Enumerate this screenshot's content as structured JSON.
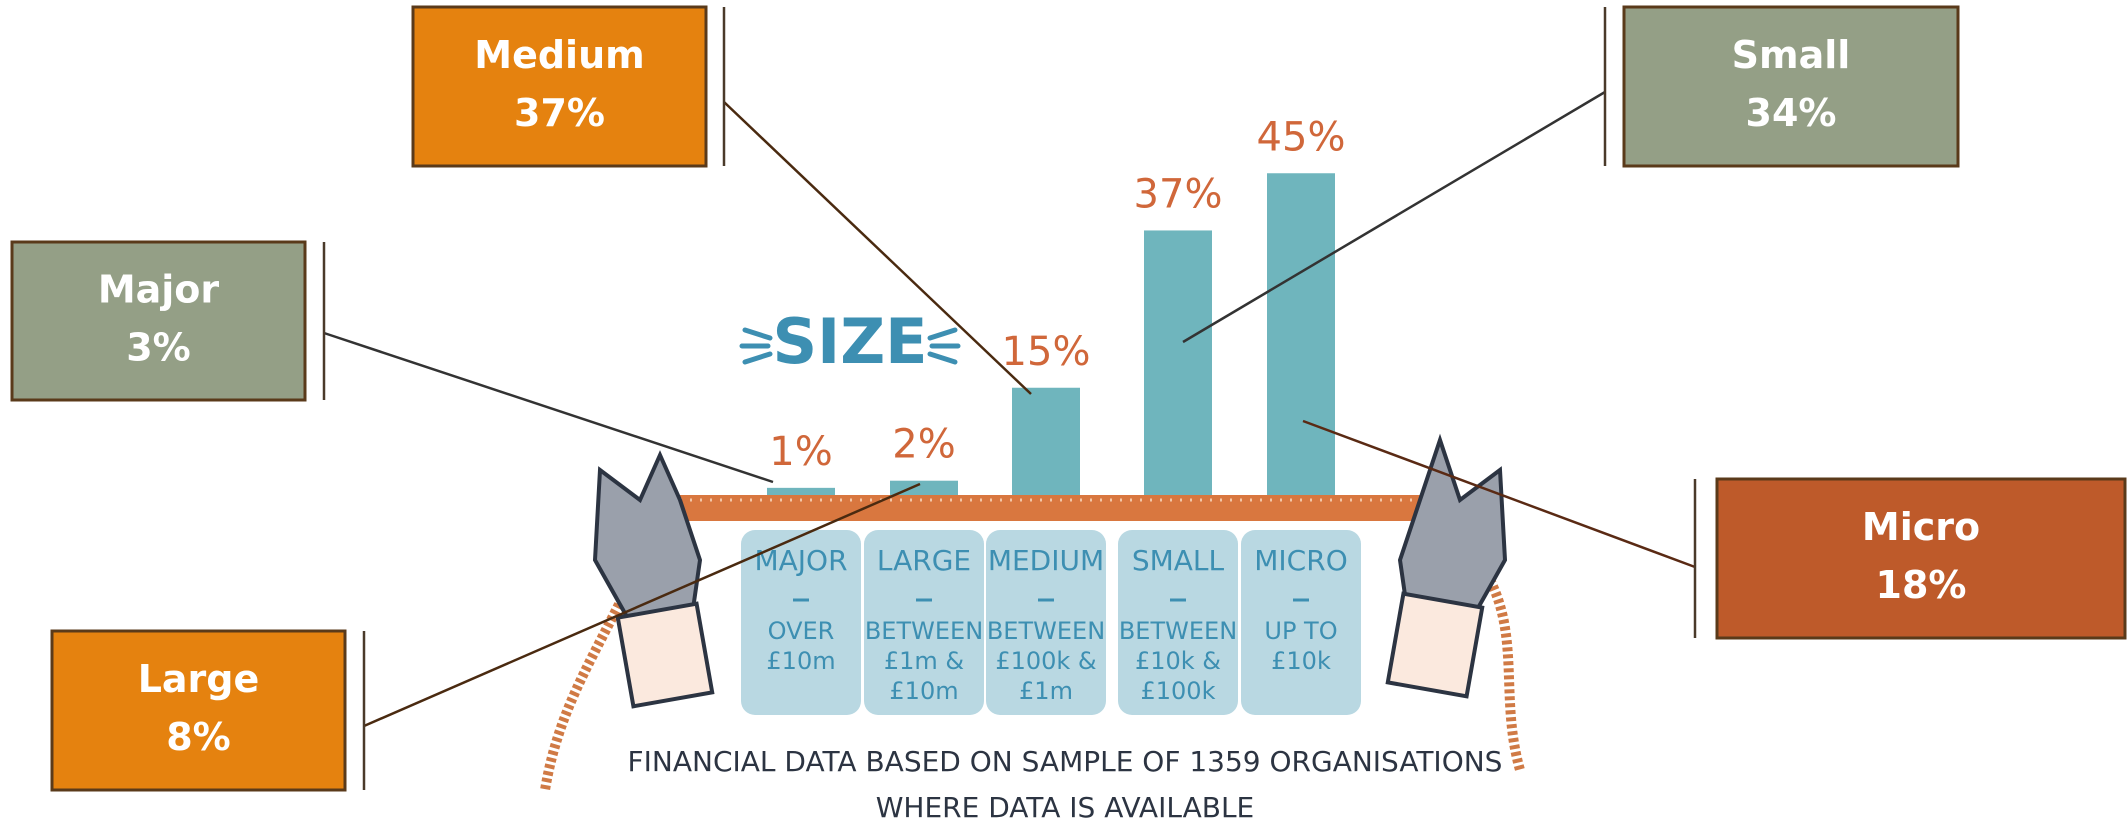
{
  "chart_data": {
    "type": "bar",
    "title": "SIZE",
    "categories": [
      "MAJOR",
      "LARGE",
      "MEDIUM",
      "SMALL",
      "MICRO"
    ],
    "category_details": [
      [
        "OVER",
        "£10m"
      ],
      [
        "BETWEEN",
        "£1m &",
        "£10m"
      ],
      [
        "BETWEEN",
        "£100k &",
        "£1m"
      ],
      [
        "BETWEEN",
        "£10k &",
        "£100k"
      ],
      [
        "UP TO",
        "£10k"
      ]
    ],
    "values": [
      1,
      2,
      15,
      37,
      45
    ],
    "value_labels": [
      "1%",
      "2%",
      "15%",
      "37%",
      "45%"
    ],
    "color": "#6fb5bd",
    "note": [
      "FINANCIAL DATA BASED ON SAMPLE OF 1359 ORGANISATIONS",
      "WHERE DATA IS AVAILABLE"
    ]
  },
  "callouts": [
    {
      "title": "Medium",
      "value": "37%",
      "color": "#e5820f"
    },
    {
      "title": "Small",
      "value": "34%",
      "color": "#949f86"
    },
    {
      "title": "Major",
      "value": "3%",
      "color": "#949f86"
    },
    {
      "title": "Large",
      "value": "8%",
      "color": "#e5820f"
    },
    {
      "title": "Micro",
      "value": "18%",
      "color": "#be5a2a"
    }
  ]
}
